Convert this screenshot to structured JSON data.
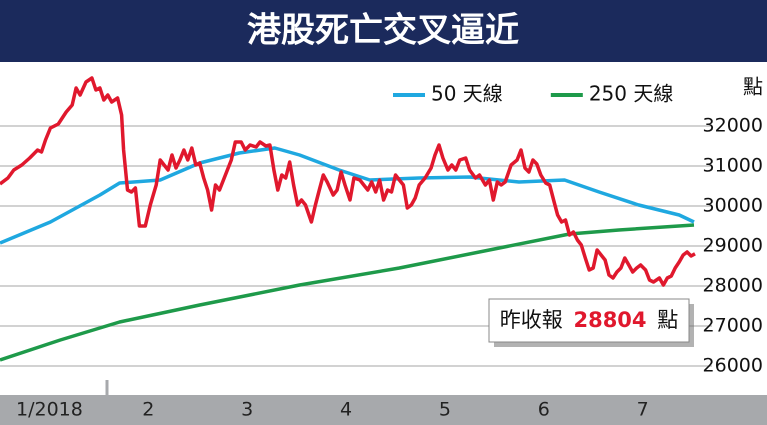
{
  "chart_data": {
    "type": "line",
    "title": "港股死亡交叉逼近",
    "y_unit": "點",
    "xlim": [
      1,
      8.05
    ],
    "xticks": [
      {
        "value": 1.5,
        "label": "1/2018"
      },
      {
        "value": 2.5,
        "label": "2"
      },
      {
        "value": 3.5,
        "label": "3"
      },
      {
        "value": 4.5,
        "label": "4"
      },
      {
        "value": 5.5,
        "label": "5"
      },
      {
        "value": 6.5,
        "label": "6"
      },
      {
        "value": 7.5,
        "label": "7"
      }
    ],
    "ylim": [
      25275,
      33600
    ],
    "yticks": [
      26000,
      27000,
      28000,
      29000,
      30000,
      31000,
      32000
    ],
    "grid": true,
    "legend": "top-right",
    "annotation": {
      "text": "昨收報",
      "value": 28804
    },
    "series": [
      {
        "color": "#e0182d",
        "x": [
          1.0,
          1.08,
          1.14,
          1.22,
          1.3,
          1.38,
          1.42,
          1.46,
          1.51,
          1.59,
          1.67,
          1.73,
          1.77,
          1.81,
          1.87,
          1.93,
          1.97,
          2.01,
          2.05,
          2.09,
          2.13,
          2.19,
          2.23,
          2.25,
          2.29,
          2.33,
          2.37,
          2.41,
          2.47,
          2.52,
          2.58,
          2.62,
          2.66,
          2.7,
          2.74,
          2.78,
          2.82,
          2.86,
          2.9,
          2.94,
          2.98,
          3.02,
          3.06,
          3.1,
          3.14,
          3.18,
          3.22,
          3.28,
          3.34,
          3.38,
          3.44,
          3.48,
          3.53,
          3.59,
          3.63,
          3.69,
          3.73,
          3.77,
          3.81,
          3.85,
          3.89,
          3.93,
          3.97,
          4.01,
          4.05,
          4.09,
          4.15,
          4.19,
          4.23,
          4.27,
          4.31,
          4.37,
          4.41,
          4.45,
          4.49,
          4.54,
          4.58,
          4.64,
          4.68,
          4.72,
          4.76,
          4.8,
          4.84,
          4.88,
          4.92,
          4.96,
          5.0,
          5.04,
          5.08,
          5.12,
          5.16,
          5.2,
          5.24,
          5.3,
          5.36,
          5.4,
          5.44,
          5.48,
          5.53,
          5.57,
          5.61,
          5.65,
          5.71,
          5.75,
          5.81,
          5.85,
          5.91,
          5.95,
          5.99,
          6.03,
          6.07,
          6.11,
          6.17,
          6.23,
          6.27,
          6.31,
          6.35,
          6.39,
          6.43,
          6.47,
          6.52,
          6.56,
          6.6,
          6.64,
          6.68,
          6.72,
          6.76,
          6.8,
          6.84,
          6.88,
          6.92,
          6.96,
          7.0,
          7.04,
          7.08,
          7.12,
          7.16,
          7.2,
          7.24,
          7.28,
          7.32,
          7.36,
          7.4,
          7.44,
          7.48,
          7.53,
          7.57,
          7.61,
          7.67,
          7.71,
          7.75,
          7.79,
          7.83,
          7.87,
          7.91,
          7.95,
          7.99,
          8.03
        ],
        "values": [
          30550,
          30700,
          30900,
          31025,
          31200,
          31400,
          31350,
          31650,
          31950,
          32050,
          32350,
          32525,
          32950,
          32775,
          33100,
          33200,
          32900,
          32950,
          32650,
          32775,
          32600,
          32700,
          32275,
          31400,
          30400,
          30350,
          30450,
          29500,
          29500,
          30025,
          30525,
          31150,
          31025,
          30900,
          31275,
          30950,
          31150,
          31400,
          31150,
          31450,
          31025,
          31075,
          30700,
          30400,
          29900,
          30525,
          30400,
          30775,
          31150,
          31600,
          31600,
          31400,
          31525,
          31475,
          31600,
          31500,
          31525,
          30900,
          30400,
          30775,
          30700,
          31100,
          30525,
          30025,
          30150,
          30025,
          29600,
          30025,
          30400,
          30775,
          30600,
          30275,
          30400,
          30850,
          30525,
          30150,
          30700,
          30650,
          30525,
          30400,
          30600,
          30350,
          30650,
          30150,
          30400,
          30350,
          30775,
          30650,
          30525,
          29950,
          30025,
          30200,
          30525,
          30700,
          30950,
          31275,
          31525,
          31200,
          30900,
          31025,
          30900,
          31150,
          31200,
          30900,
          30700,
          30775,
          30525,
          30650,
          30150,
          30600,
          30525,
          30600,
          31025,
          31150,
          31400,
          30950,
          30850,
          31150,
          31050,
          30775,
          30575,
          30525,
          30150,
          29775,
          29600,
          29650,
          29275,
          29350,
          29150,
          29025,
          28700,
          28400,
          28450,
          28900,
          28775,
          28650,
          28275,
          28200,
          28350,
          28450,
          28700,
          28525,
          28350,
          28450,
          28525,
          28400,
          28150,
          28100,
          28200,
          28025,
          28200,
          28250,
          28450,
          28600,
          28775,
          28850,
          28750,
          28804
        ]
      },
      {
        "name": "50 天線",
        "color": "#1fa8e0",
        "x": [
          1.0,
          1.51,
          2.01,
          2.21,
          2.62,
          3.02,
          3.42,
          3.78,
          4.03,
          4.43,
          4.74,
          5.24,
          5.75,
          6.25,
          6.71,
          7.06,
          7.46,
          7.87,
          8.02
        ],
        "values": [
          29075,
          29600,
          30275,
          30575,
          30650,
          31075,
          31325,
          31450,
          31275,
          30900,
          30650,
          30700,
          30725,
          30600,
          30650,
          30350,
          30025,
          29775,
          29600
        ]
      },
      {
        "name": "250 天線",
        "color": "#1e9a4a",
        "x": [
          1.0,
          1.61,
          2.21,
          3.02,
          4.03,
          5.04,
          6.05,
          6.76,
          7.26,
          8.02
        ],
        "values": [
          26150,
          26650,
          27100,
          27525,
          28025,
          28450,
          28950,
          29300,
          29400,
          29525
        ]
      }
    ]
  }
}
